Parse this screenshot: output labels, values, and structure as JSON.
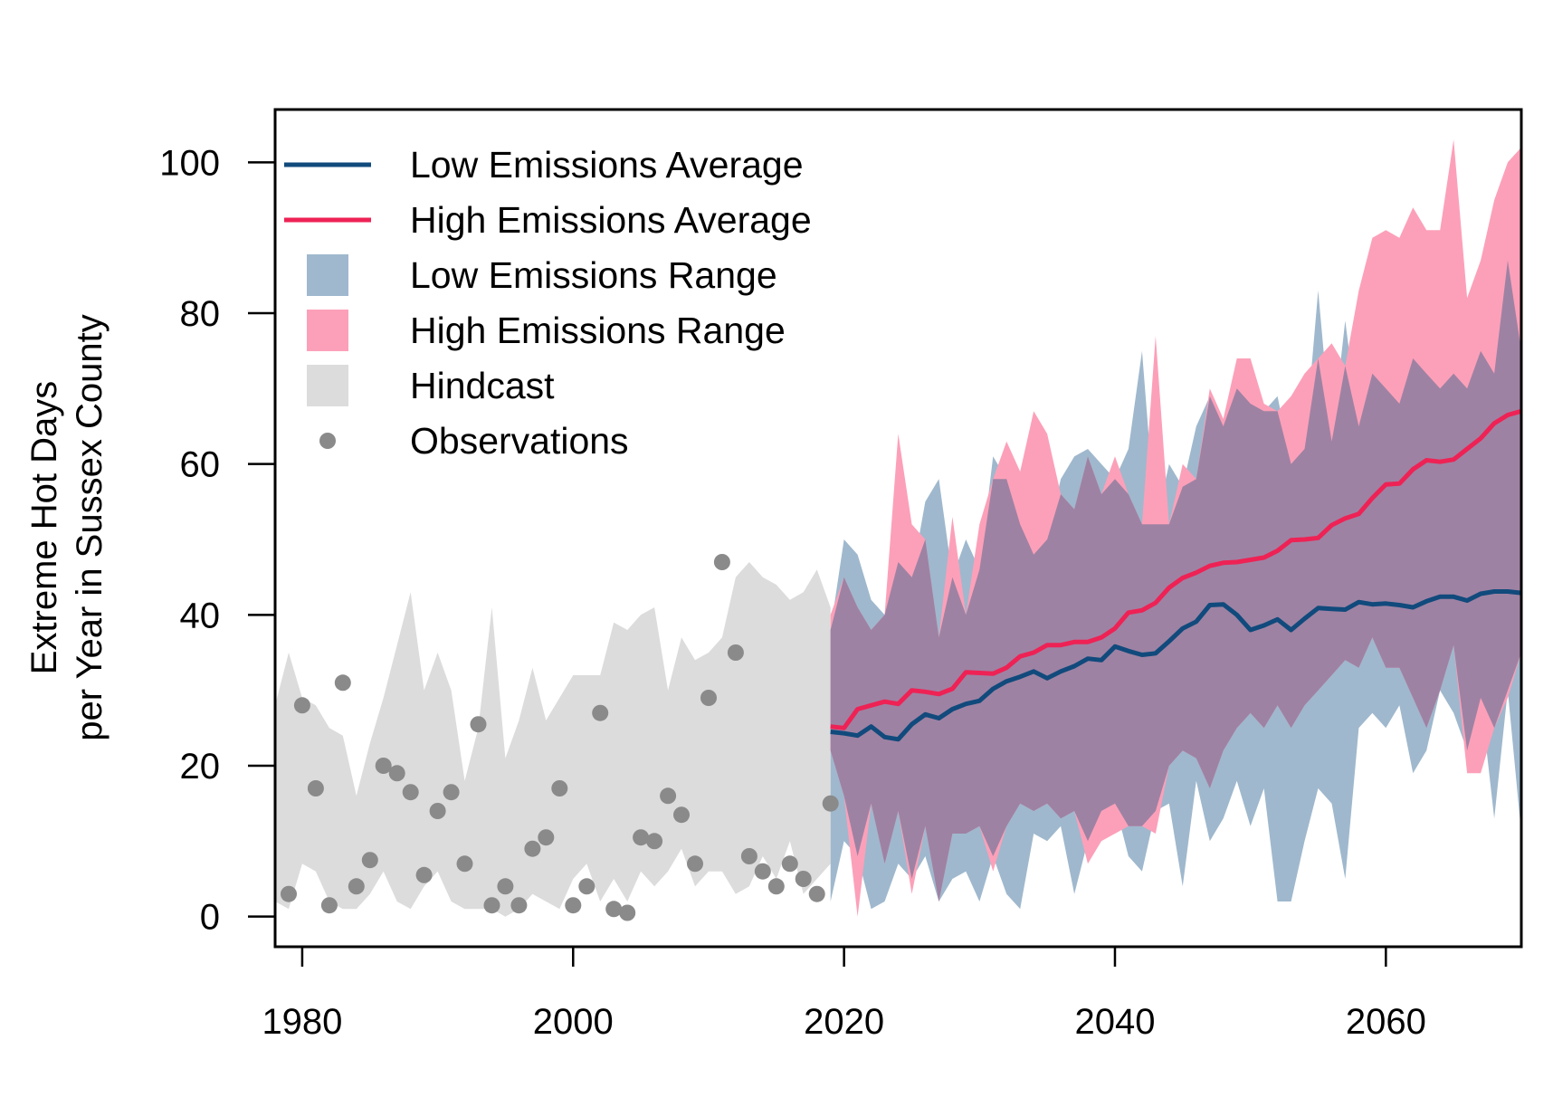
{
  "chart_data": {
    "type": "line",
    "title": "",
    "xlabel": "",
    "ylabel": [
      "Extreme Hot Days",
      "per Year in Sussex County"
    ],
    "xlim": [
      1978,
      2070
    ],
    "ylim": [
      -4,
      107
    ],
    "x_ticks": [
      1980,
      2000,
      2020,
      2040,
      2060
    ],
    "y_ticks": [
      0,
      20,
      40,
      60,
      80,
      100
    ],
    "grid": false,
    "legend": {
      "position": "top-left",
      "items": [
        {
          "label": "Low Emissions Average",
          "kind": "line",
          "color": "#114a7c"
        },
        {
          "label": "High Emissions Average",
          "kind": "line",
          "color": "#ee2255"
        },
        {
          "label": "Low Emissions Range",
          "kind": "box",
          "color": "#9fb8cd"
        },
        {
          "label": "High Emissions Range",
          "kind": "box",
          "color": "#fca0b9"
        },
        {
          "label": "Hindcast",
          "kind": "box",
          "color": "#dcdcdc"
        },
        {
          "label": "Observations",
          "kind": "point",
          "color": "#8a8a8a"
        }
      ]
    },
    "colors": {
      "low_line": "#114a7c",
      "high_line": "#ee2255",
      "low_range": "#9fb8cd",
      "high_range": "#fca0b9",
      "overlap": "#9e82a3",
      "hindcast": "#dcdcdc",
      "obs": "#8a8a8a"
    },
    "hindcast": {
      "x": [
        1978,
        1979,
        1980,
        1981,
        1982,
        1983,
        1984,
        1985,
        1986,
        1987,
        1988,
        1989,
        1990,
        1991,
        1992,
        1993,
        1994,
        1995,
        1996,
        1997,
        1998,
        1999,
        2000,
        2001,
        2002,
        2003,
        2004,
        2005,
        2006,
        2007,
        2008,
        2009,
        2010,
        2011,
        2012,
        2013,
        2014,
        2015,
        2016,
        2017,
        2018,
        2019
      ],
      "upper": [
        28,
        35,
        29,
        28,
        25,
        24,
        16,
        23,
        29,
        36,
        43,
        30,
        35,
        30,
        18,
        25,
        41,
        21,
        26,
        33,
        26,
        29,
        32,
        32,
        32,
        39,
        38,
        40,
        41,
        30,
        37,
        34,
        35,
        37,
        45,
        47,
        45,
        44,
        42,
        43,
        46,
        41
      ],
      "lower": [
        2,
        1,
        7,
        6,
        2,
        1,
        1,
        3,
        6,
        2,
        1,
        4,
        6,
        2,
        1,
        1,
        1,
        0,
        1,
        3,
        2,
        1,
        5,
        7,
        2,
        5,
        2,
        6,
        4,
        6,
        9,
        4,
        6,
        6,
        3,
        4,
        8,
        5,
        10,
        3,
        5,
        7
      ]
    },
    "projection": {
      "x": [
        2019,
        2020,
        2021,
        2022,
        2023,
        2024,
        2025,
        2026,
        2027,
        2028,
        2029,
        2030,
        2031,
        2032,
        2033,
        2034,
        2035,
        2036,
        2037,
        2038,
        2039,
        2040,
        2041,
        2042,
        2043,
        2044,
        2045,
        2046,
        2047,
        2048,
        2049,
        2050,
        2051,
        2052,
        2053,
        2054,
        2055,
        2056,
        2057,
        2058,
        2059,
        2060,
        2061,
        2062,
        2063,
        2064,
        2065,
        2066,
        2067,
        2068,
        2069,
        2070
      ],
      "low_avg": [
        24.5,
        24.3,
        24.0,
        25.2,
        23.8,
        23.5,
        25.5,
        26.8,
        26.3,
        27.5,
        28.2,
        28.6,
        30.2,
        31.2,
        31.8,
        32.5,
        31.6,
        32.5,
        33.2,
        34.2,
        34.0,
        35.8,
        35.2,
        34.7,
        34.9,
        36.5,
        38.2,
        39.1,
        41.3,
        41.4,
        40.0,
        38.0,
        38.6,
        39.4,
        38.0,
        39.5,
        40.9,
        40.8,
        40.7,
        41.7,
        41.4,
        41.5,
        41.3,
        41.0,
        41.8,
        42.4,
        42.4,
        41.9,
        42.8,
        43.1,
        43.1,
        42.9
      ],
      "high_avg": [
        25.2,
        25.0,
        27.5,
        28.0,
        28.5,
        28.2,
        30.0,
        29.8,
        29.5,
        30.2,
        32.4,
        32.3,
        32.2,
        33.0,
        34.5,
        35.0,
        36.0,
        36.0,
        36.4,
        36.4,
        37.0,
        38.2,
        40.3,
        40.6,
        41.6,
        43.6,
        44.9,
        45.6,
        46.5,
        46.9,
        47.0,
        47.3,
        47.6,
        48.5,
        49.9,
        50.0,
        50.2,
        51.9,
        52.8,
        53.4,
        55.5,
        57.3,
        57.4,
        59.3,
        60.5,
        60.3,
        60.6,
        62.0,
        63.4,
        65.4,
        66.5,
        67.0
      ],
      "low_upper": [
        38,
        50,
        48,
        42,
        40,
        47,
        45,
        55,
        58,
        45,
        50,
        46,
        61,
        58,
        52,
        48,
        50,
        58,
        61,
        62,
        60,
        58,
        62,
        75,
        52,
        60,
        57,
        65,
        69,
        65,
        70,
        68,
        67,
        69,
        60,
        62,
        83,
        63,
        79,
        65,
        72,
        70,
        68,
        74,
        72,
        70,
        72,
        70,
        75,
        72,
        87,
        75
      ],
      "low_lower": [
        2,
        10,
        8,
        1,
        2,
        7,
        5,
        8,
        2,
        5,
        6,
        2,
        8,
        3,
        1,
        11,
        10,
        12,
        3,
        10,
        14,
        15,
        8,
        6,
        14,
        15,
        4,
        18,
        10,
        13,
        18,
        12,
        17,
        2,
        2,
        10,
        17,
        15,
        5,
        25,
        27,
        25,
        28,
        19,
        22,
        30,
        27,
        22,
        29,
        13,
        30,
        11
      ],
      "high_upper": [
        40,
        45,
        41,
        38,
        40,
        64,
        52,
        50,
        37,
        53,
        40,
        52,
        58,
        63,
        59,
        67,
        64,
        56,
        54,
        61,
        56,
        61,
        56,
        52,
        77,
        52,
        60,
        58,
        70,
        66,
        74,
        74,
        68,
        67,
        69,
        72,
        74,
        76,
        73,
        83,
        90,
        91,
        90,
        94,
        91,
        91,
        103,
        82,
        87,
        95,
        100,
        102
      ],
      "high_lower": [
        22,
        16,
        0,
        15,
        7,
        14,
        3,
        12,
        2,
        11,
        11,
        12,
        6,
        12,
        15,
        14,
        15,
        13,
        14,
        7,
        10,
        11,
        12,
        12,
        11,
        20,
        22,
        21,
        17,
        22,
        25,
        27,
        25,
        28,
        25,
        28,
        30,
        32,
        34,
        33,
        37,
        33,
        33,
        29,
        25,
        30,
        36,
        19,
        19,
        25,
        29,
        35
      ]
    },
    "observations": {
      "x": [
        1979,
        1980,
        1981,
        1982,
        1983,
        1984,
        1985,
        1986,
        1987,
        1988,
        1989,
        1990,
        1991,
        1992,
        1993,
        1994,
        1995,
        1996,
        1997,
        1998,
        1999,
        2000,
        2001,
        2002,
        2003,
        2004,
        2005,
        2006,
        2007,
        2008,
        2009,
        2010,
        2011,
        2012,
        2013,
        2014,
        2015,
        2016,
        2017,
        2018,
        2019
      ],
      "y": [
        3,
        28,
        17,
        1.5,
        31,
        4,
        7.5,
        20,
        19,
        16.5,
        5.5,
        14,
        16.5,
        7,
        25.5,
        1.5,
        4,
        1.5,
        9,
        10.5,
        17,
        1.5,
        4,
        27,
        1,
        0.5,
        10.5,
        10,
        16,
        13.5,
        7,
        29,
        47,
        35,
        8,
        6,
        4,
        7,
        5,
        3,
        15
      ]
    }
  }
}
